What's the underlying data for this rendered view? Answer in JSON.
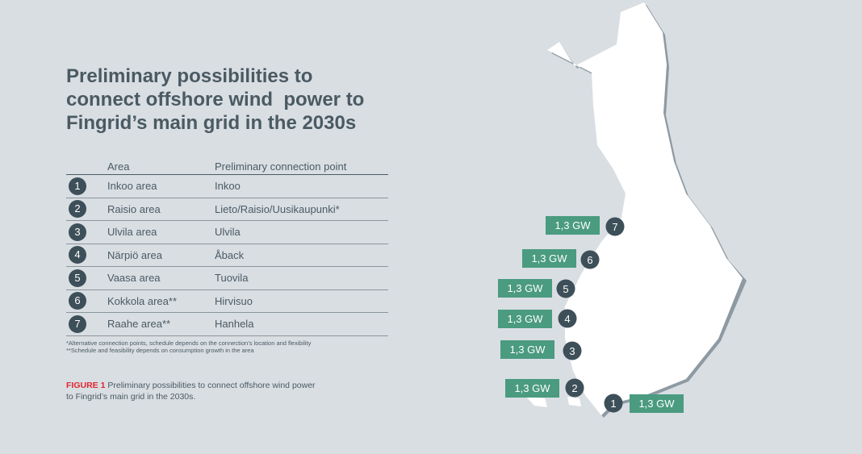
{
  "header": {
    "title": [
      "Preliminary possibilities to",
      "connect offshore wind  power to",
      "Fingrid’s main grid in the 2030s"
    ]
  },
  "table": {
    "columns": [
      "Area",
      "Preliminary connection point"
    ],
    "rows": [
      [
        "1",
        "Inkoo area",
        "Inkoo"
      ],
      [
        "2",
        "Raisio area",
        "Lieto/Raisio/Uusikaupunki*"
      ],
      [
        "3",
        "Ulvila area",
        "Ulvila"
      ],
      [
        "4",
        "Närpiö area",
        "Åback"
      ],
      [
        "5",
        "Vaasa area",
        "Tuovila"
      ],
      [
        "6",
        "Kokkola area**",
        "Hirvisuo"
      ],
      [
        "7",
        "Raahe area**",
        "Hanhela"
      ]
    ]
  },
  "footnotes": [
    "*Alternative connection points, schedule depends on the connection’s location and flexibility",
    "**Schedule and feasibility depends on consumption growth in the area"
  ],
  "caption": {
    "label": "FIGURE 1",
    "text": "Preliminary possibilities to connect offshore wind power to Fingrid’s main grid in the 2030s."
  },
  "map": {
    "markers": [
      {
        "number": "7",
        "capacity": "1,3 GW"
      },
      {
        "number": "6",
        "capacity": "1,3 GW"
      },
      {
        "number": "5",
        "capacity": "1,3 GW"
      },
      {
        "number": "4",
        "capacity": "1,3 GW"
      },
      {
        "number": "3",
        "capacity": "1,3 GW"
      },
      {
        "number": "2",
        "capacity": "1,3 GW"
      },
      {
        "number": "1",
        "capacity": "1,3 GW"
      }
    ]
  }
}
